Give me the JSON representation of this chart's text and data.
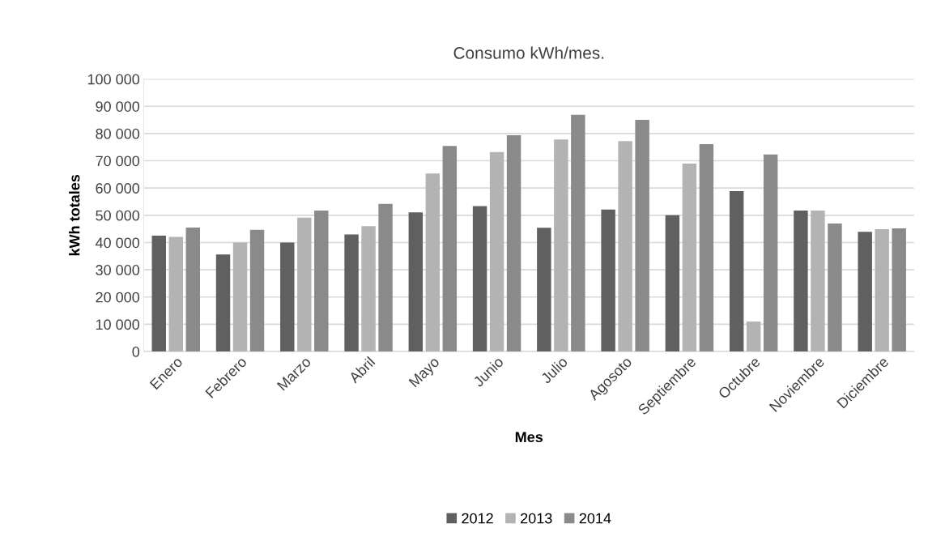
{
  "chart_data": {
    "type": "bar",
    "title": "Consumo kWh/mes.",
    "xlabel": "Mes",
    "ylabel": "kWh totales",
    "categories": [
      "Enero",
      "Febrero",
      "Marzo",
      "Abril",
      "Mayo",
      "Junio",
      "Julio",
      "Agosoto",
      "Septiembre",
      "Octubre",
      "Noviembre",
      "Diciembre"
    ],
    "series": [
      {
        "name": "2012",
        "color": "#606060",
        "values": [
          42500,
          35600,
          40000,
          43000,
          51100,
          53400,
          45400,
          52100,
          50000,
          58900,
          51700,
          43900
        ]
      },
      {
        "name": "2013",
        "color": "#b3b3b3",
        "values": [
          42100,
          40000,
          49100,
          46000,
          65300,
          73200,
          77800,
          77200,
          69000,
          11000,
          51700,
          44900
        ]
      },
      {
        "name": "2014",
        "color": "#8a8a8a",
        "values": [
          45500,
          44700,
          51700,
          54200,
          75400,
          79400,
          86900,
          85000,
          76100,
          72300,
          47000,
          45200
        ]
      }
    ],
    "ylim": [
      0,
      100000
    ],
    "yticks": [
      0,
      {
        "value": 10000,
        "label": "10 000"
      },
      {
        "value": 20000,
        "label": "20 000"
      },
      {
        "value": 30000,
        "label": "30 000"
      },
      {
        "value": 40000,
        "label": "40 000"
      },
      {
        "value": 50000,
        "label": "50 000"
      },
      {
        "value": 60000,
        "label": "60 000"
      },
      {
        "value": 70000,
        "label": "70 000"
      },
      {
        "value": 80000,
        "label": "80 000"
      },
      {
        "value": 90000,
        "label": "90 000"
      },
      {
        "value": 100000,
        "label": "100 000"
      }
    ],
    "grid": "y",
    "legend": "bottom"
  }
}
